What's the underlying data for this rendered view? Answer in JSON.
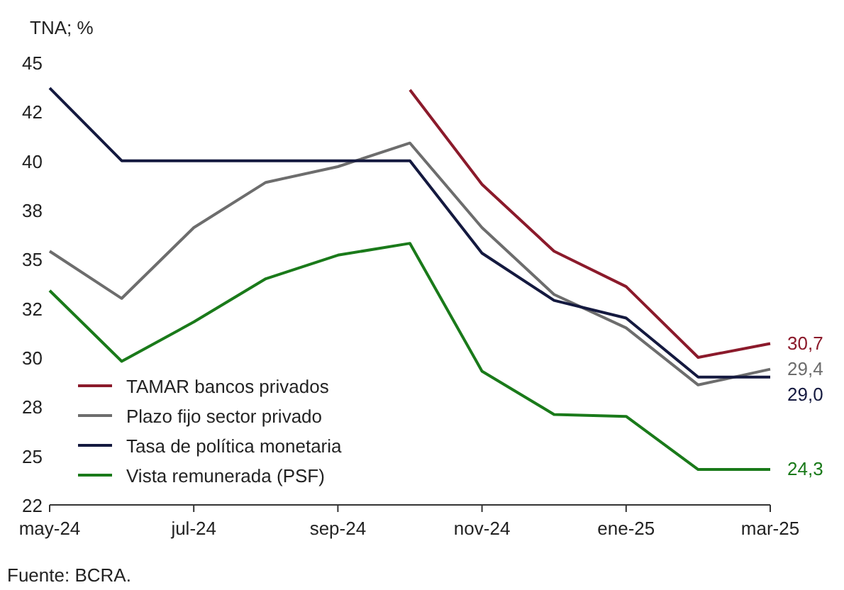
{
  "chart_data": {
    "type": "line",
    "ylabel": "TNA; %",
    "categories": [
      "may-24",
      null,
      "jul-24",
      null,
      "sep-24",
      null,
      "nov-24",
      null,
      "ene-25",
      null,
      "mar-25"
    ],
    "ylim": [
      22.5,
      45
    ],
    "yticks": [
      {
        "value": 22.5,
        "label": "22"
      },
      25,
      {
        "value": 27.5,
        "label": "28"
      },
      30,
      {
        "value": 32.5,
        "label": "32"
      },
      35,
      {
        "value": 37.5,
        "label": "38"
      },
      40,
      {
        "value": 42.5,
        "label": "42"
      },
      45
    ],
    "series": [
      {
        "name": "TAMAR bancos privados",
        "color": "#8b1a2b",
        "values": [
          null,
          null,
          null,
          null,
          null,
          43.6,
          38.8,
          35.4,
          33.6,
          30.0,
          30.7
        ],
        "value_labels": [
          null,
          null,
          null,
          null,
          null,
          null,
          null,
          null,
          null,
          null,
          "30,7"
        ]
      },
      {
        "name": "Plazo fijo sector privado",
        "color": "#6d6d6d",
        "values": [
          35.4,
          33.0,
          36.6,
          38.9,
          39.7,
          40.9,
          36.6,
          33.2,
          31.5,
          28.6,
          29.4
        ],
        "value_labels": [
          null,
          null,
          null,
          null,
          null,
          null,
          null,
          null,
          null,
          null,
          "29,4"
        ]
      },
      {
        "name": "Tasa de política monetaria",
        "color": "#14193f",
        "values": [
          43.7,
          40,
          40,
          40,
          40,
          40,
          35.3,
          32.9,
          32.0,
          29.0,
          29.0
        ],
        "value_labels": [
          null,
          null,
          null,
          null,
          null,
          null,
          null,
          null,
          null,
          null,
          "29,0"
        ]
      },
      {
        "name": "Vista remunerada (PSF)",
        "color": "#1a7a1a",
        "values": [
          33.4,
          29.8,
          31.8,
          34.0,
          35.2,
          35.8,
          29.3,
          27.1,
          27.0,
          24.3,
          24.3
        ],
        "value_labels": [
          null,
          null,
          null,
          null,
          null,
          null,
          null,
          null,
          null,
          null,
          "24,3"
        ]
      }
    ],
    "legend": "bottom left",
    "grid": false,
    "marker": "none",
    "line_style": "solid",
    "annotations": [
      "Fuente: BCRA."
    ]
  }
}
